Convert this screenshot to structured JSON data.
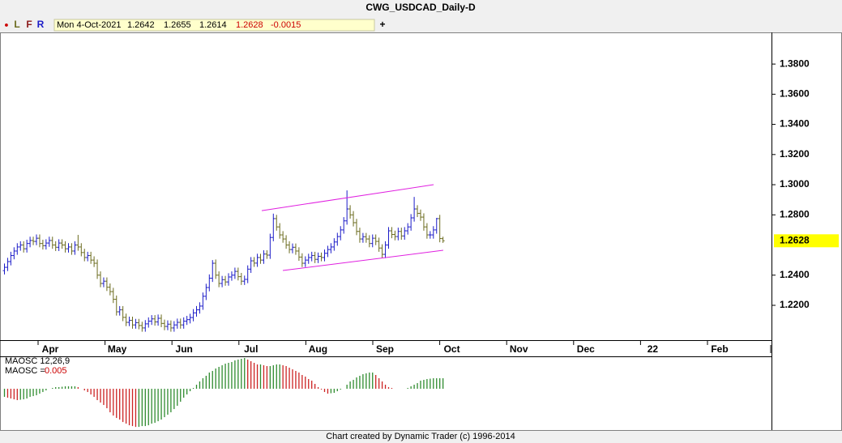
{
  "chart_data": {
    "type": "ohlc",
    "title": "CWG_USDCAD_Daily-D",
    "toolbar": [
      "L",
      "F",
      "R"
    ],
    "date": "Mon 4-Oct-2021",
    "change": -0.0015,
    "up_color": "#1c1cc8",
    "down_color": "#6b6b1e",
    "ylim": [
      1.1969,
      1.401
    ],
    "yticks": [
      {
        "value": 1.38,
        "label": "1.3800"
      },
      {
        "value": 1.36,
        "label": "1.3600"
      },
      {
        "value": 1.34,
        "label": "1.3400"
      },
      {
        "value": 1.32,
        "label": "1.3200"
      },
      {
        "value": 1.3,
        "label": "1.3000"
      },
      {
        "value": 1.28,
        "label": "1.2800"
      },
      {
        "value": 1.24,
        "label": "1.2400"
      },
      {
        "value": 1.22,
        "label": "1.2200"
      }
    ],
    "xlabels": [
      "Apr",
      "May",
      "Jun",
      "Jul",
      "Aug",
      "Sep",
      "Oct",
      "Nov",
      "Dec",
      "22",
      "Feb"
    ],
    "ohlc": [
      [
        1.243,
        1.2477,
        1.2405,
        1.2452
      ],
      [
        1.2452,
        1.2515,
        1.2427,
        1.249
      ],
      [
        1.249,
        1.2555,
        1.2465,
        1.253
      ],
      [
        1.253,
        1.2585,
        1.2505,
        1.256
      ],
      [
        1.256,
        1.2612,
        1.2535,
        1.2587
      ],
      [
        1.2587,
        1.2625,
        1.2562,
        1.26
      ],
      [
        1.26,
        1.2625,
        1.255,
        1.2575
      ],
      [
        1.2575,
        1.2635,
        1.255,
        1.261
      ],
      [
        1.261,
        1.2655,
        1.2585,
        1.263
      ],
      [
        1.263,
        1.2655,
        1.2599,
        1.2624
      ],
      [
        1.2624,
        1.267,
        1.2599,
        1.2645
      ],
      [
        1.2645,
        1.267,
        1.2585,
        1.261
      ],
      [
        1.261,
        1.2635,
        1.257,
        1.2595
      ],
      [
        1.2595,
        1.2638,
        1.257,
        1.2613
      ],
      [
        1.2613,
        1.2655,
        1.2588,
        1.263
      ],
      [
        1.263,
        1.2655,
        1.2575,
        1.26
      ],
      [
        1.26,
        1.2625,
        1.256,
        1.2585
      ],
      [
        1.2585,
        1.2638,
        1.256,
        1.2613
      ],
      [
        1.2613,
        1.2638,
        1.2575,
        1.26
      ],
      [
        1.26,
        1.2625,
        1.255,
        1.2575
      ],
      [
        1.2575,
        1.2612,
        1.255,
        1.2587
      ],
      [
        1.2587,
        1.2612,
        1.2535,
        1.256
      ],
      [
        1.256,
        1.2625,
        1.2535,
        1.26
      ],
      [
        1.26,
        1.2667,
        1.2562,
        1.2587
      ],
      [
        1.2587,
        1.2612,
        1.2525,
        1.255
      ],
      [
        1.255,
        1.2575,
        1.2492,
        1.2517
      ],
      [
        1.2517,
        1.2555,
        1.2492,
        1.253
      ],
      [
        1.253,
        1.2555,
        1.2475,
        1.25
      ],
      [
        1.25,
        1.2525,
        1.2454,
        1.2479
      ],
      [
        1.2479,
        1.2504,
        1.2375,
        1.24
      ],
      [
        1.24,
        1.2425,
        1.232,
        1.2345
      ],
      [
        1.2345,
        1.2385,
        1.232,
        1.236
      ],
      [
        1.236,
        1.2385,
        1.2295,
        1.232
      ],
      [
        1.232,
        1.2345,
        1.2266,
        1.2291
      ],
      [
        1.2291,
        1.2316,
        1.2215,
        1.224
      ],
      [
        1.224,
        1.2265,
        1.2132,
        1.2157
      ],
      [
        1.2157,
        1.2195,
        1.2132,
        1.217
      ],
      [
        1.217,
        1.2195,
        1.2095,
        1.212
      ],
      [
        1.212,
        1.2145,
        1.2062,
        1.2087
      ],
      [
        1.2087,
        1.2125,
        1.2062,
        1.21
      ],
      [
        1.21,
        1.2125,
        1.2045,
        1.207
      ],
      [
        1.207,
        1.211,
        1.2045,
        1.2085
      ],
      [
        1.2085,
        1.211,
        1.2041,
        1.2066
      ],
      [
        1.2066,
        1.2091,
        1.2025,
        1.205
      ],
      [
        1.205,
        1.2102,
        1.2025,
        1.2077
      ],
      [
        1.2077,
        1.212,
        1.2052,
        1.2095
      ],
      [
        1.2095,
        1.2135,
        1.207,
        1.211
      ],
      [
        1.211,
        1.2135,
        1.2065,
        1.209
      ],
      [
        1.209,
        1.2139,
        1.2065,
        1.2114
      ],
      [
        1.2114,
        1.2139,
        1.2055,
        1.208
      ],
      [
        1.208,
        1.2105,
        1.2035,
        1.206
      ],
      [
        1.206,
        1.21,
        1.2035,
        1.2075
      ],
      [
        1.2075,
        1.21,
        1.2025,
        1.205
      ],
      [
        1.205,
        1.2095,
        1.2025,
        1.207
      ],
      [
        1.207,
        1.2112,
        1.2045,
        1.2087
      ],
      [
        1.2087,
        1.2112,
        1.2045,
        1.207
      ],
      [
        1.207,
        1.212,
        1.2045,
        1.2095
      ],
      [
        1.2095,
        1.213,
        1.207,
        1.2105
      ],
      [
        1.2105,
        1.2144,
        1.208,
        1.2119
      ],
      [
        1.2119,
        1.2175,
        1.2094,
        1.215
      ],
      [
        1.215,
        1.2195,
        1.2125,
        1.217
      ],
      [
        1.217,
        1.222,
        1.2145,
        1.2195
      ],
      [
        1.2195,
        1.2285,
        1.217,
        1.226
      ],
      [
        1.226,
        1.2343,
        1.2235,
        1.2318
      ],
      [
        1.2318,
        1.2405,
        1.2293,
        1.238
      ],
      [
        1.238,
        1.25,
        1.2355,
        1.2479
      ],
      [
        1.2479,
        1.2504,
        1.2375,
        1.24
      ],
      [
        1.24,
        1.2425,
        1.232,
        1.2345
      ],
      [
        1.2345,
        1.2395,
        1.232,
        1.237
      ],
      [
        1.237,
        1.2395,
        1.233,
        1.2355
      ],
      [
        1.2355,
        1.2413,
        1.233,
        1.2388
      ],
      [
        1.2388,
        1.2425,
        1.2363,
        1.24
      ],
      [
        1.24,
        1.245,
        1.2375,
        1.2425
      ],
      [
        1.2425,
        1.245,
        1.2365,
        1.239
      ],
      [
        1.239,
        1.2415,
        1.2335,
        1.236
      ],
      [
        1.236,
        1.2397,
        1.2335,
        1.2372
      ],
      [
        1.2372,
        1.2465,
        1.2347,
        1.244
      ],
      [
        1.244,
        1.252,
        1.2415,
        1.2495
      ],
      [
        1.2495,
        1.252,
        1.2455,
        1.248
      ],
      [
        1.248,
        1.2542,
        1.2455,
        1.2517
      ],
      [
        1.2517,
        1.2542,
        1.2475,
        1.25
      ],
      [
        1.25,
        1.2565,
        1.2475,
        1.254
      ],
      [
        1.254,
        1.2565,
        1.2508,
        1.2533
      ],
      [
        1.2533,
        1.2675,
        1.2508,
        1.265
      ],
      [
        1.265,
        1.2808,
        1.2625,
        1.2775
      ],
      [
        1.2775,
        1.28,
        1.2695,
        1.272
      ],
      [
        1.272,
        1.2745,
        1.2642,
        1.2667
      ],
      [
        1.2667,
        1.2692,
        1.2615,
        1.264
      ],
      [
        1.264,
        1.2665,
        1.2575,
        1.26
      ],
      [
        1.26,
        1.2625,
        1.2545,
        1.257
      ],
      [
        1.257,
        1.261,
        1.2545,
        1.2585
      ],
      [
        1.2585,
        1.261,
        1.2535,
        1.256
      ],
      [
        1.256,
        1.2585,
        1.2495,
        1.252
      ],
      [
        1.252,
        1.2545,
        1.2454,
        1.2479
      ],
      [
        1.2479,
        1.2525,
        1.2454,
        1.25
      ],
      [
        1.25,
        1.2542,
        1.2475,
        1.2517
      ],
      [
        1.2517,
        1.2555,
        1.2492,
        1.253
      ],
      [
        1.253,
        1.2555,
        1.248,
        1.2505
      ],
      [
        1.2505,
        1.255,
        1.248,
        1.2525
      ],
      [
        1.2525,
        1.255,
        1.2492,
        1.2517
      ],
      [
        1.2517,
        1.257,
        1.2492,
        1.2545
      ],
      [
        1.2545,
        1.2595,
        1.252,
        1.257
      ],
      [
        1.257,
        1.2612,
        1.2545,
        1.2587
      ],
      [
        1.2587,
        1.2645,
        1.2562,
        1.262
      ],
      [
        1.262,
        1.2681,
        1.2595,
        1.2656
      ],
      [
        1.2656,
        1.2725,
        1.2631,
        1.27
      ],
      [
        1.27,
        1.2785,
        1.2675,
        1.276
      ],
      [
        1.276,
        1.2962,
        1.2735,
        1.2839
      ],
      [
        1.2839,
        1.2864,
        1.2775,
        1.28
      ],
      [
        1.28,
        1.2825,
        1.2723,
        1.2748
      ],
      [
        1.2748,
        1.2773,
        1.2665,
        1.269
      ],
      [
        1.269,
        1.2715,
        1.2615,
        1.264
      ],
      [
        1.264,
        1.268,
        1.2615,
        1.2655
      ],
      [
        1.2655,
        1.268,
        1.2615,
        1.264
      ],
      [
        1.264,
        1.2665,
        1.2585,
        1.261
      ],
      [
        1.261,
        1.267,
        1.2585,
        1.2645
      ],
      [
        1.2645,
        1.267,
        1.2599,
        1.2624
      ],
      [
        1.2624,
        1.2649,
        1.2555,
        1.258
      ],
      [
        1.258,
        1.2605,
        1.2513,
        1.2538
      ],
      [
        1.2538,
        1.2625,
        1.2513,
        1.26
      ],
      [
        1.26,
        1.2719,
        1.2575,
        1.2694
      ],
      [
        1.2694,
        1.2719,
        1.2645,
        1.267
      ],
      [
        1.267,
        1.2695,
        1.2631,
        1.2656
      ],
      [
        1.2656,
        1.2715,
        1.2631,
        1.269
      ],
      [
        1.269,
        1.2715,
        1.2635,
        1.266
      ],
      [
        1.266,
        1.2719,
        1.2635,
        1.2694
      ],
      [
        1.2694,
        1.2745,
        1.2669,
        1.272
      ],
      [
        1.272,
        1.2805,
        1.2695,
        1.278
      ],
      [
        1.278,
        1.2919,
        1.2755,
        1.2839
      ],
      [
        1.2839,
        1.2864,
        1.2785,
        1.281
      ],
      [
        1.281,
        1.2835,
        1.276,
        1.2785
      ],
      [
        1.2785,
        1.281,
        1.2695,
        1.272
      ],
      [
        1.272,
        1.2745,
        1.2642,
        1.2667
      ],
      [
        1.2667,
        1.2692,
        1.2642,
        1.2667
      ],
      [
        1.2667,
        1.2725,
        1.2642,
        1.27
      ],
      [
        1.27,
        1.278,
        1.2675,
        1.2775
      ],
      [
        1.2775,
        1.28,
        1.2618,
        1.2643
      ],
      [
        1.2642,
        1.2655,
        1.2614,
        1.2628
      ]
    ],
    "trendlines": [
      {
        "x": [
          80.5,
          134.2
        ],
        "y": [
          1.2828,
          1.3
        ],
        "color": "#e020e0"
      },
      {
        "x": [
          87.1,
          137.2
        ],
        "y": [
          1.2431,
          1.2565
        ],
        "color": "#e020e0"
      }
    ],
    "maosc": {
      "name": "MAOSC 12,26,9",
      "value_prefix": "MAOSC =",
      "up_color": "#2e8b2e",
      "down_color": "#cc2222",
      "ylim": [
        -0.0196,
        0.0154
      ],
      "values": [
        -0.00385,
        -0.00424,
        -0.00462,
        -0.00501,
        -0.00539,
        -0.0052,
        -0.00501,
        -0.00462,
        -0.00385,
        -0.00347,
        -0.00308,
        -0.00231,
        -0.00154,
        -0.00077,
        0,
        0.00039,
        0.00077,
        0.00077,
        0.00096,
        0.00116,
        0.00116,
        0.00116,
        0.00116,
        0.00077,
        0,
        -0.00077,
        -0.00154,
        -0.0027,
        -0.00385,
        -0.00539,
        -0.00655,
        -0.0077,
        -0.00924,
        -0.01117,
        -0.01271,
        -0.01386,
        -0.01463,
        -0.01579,
        -0.01656,
        -0.01733,
        -0.01771,
        -0.0181,
        -0.0181,
        -0.01771,
        -0.01771,
        -0.01733,
        -0.01656,
        -0.01617,
        -0.0154,
        -0.01463,
        -0.01348,
        -0.01232,
        -0.01117,
        -0.00963,
        -0.00809,
        -0.00616,
        -0.00424,
        -0.0027,
        -0.00116,
        0.00039,
        0.00193,
        0.00347,
        0.005,
        0.00616,
        0.0077,
        0.00847,
        0.00963,
        0.0104,
        0.01117,
        0.01194,
        0.01232,
        0.01271,
        0.01348,
        0.01386,
        0.01425,
        0.01463,
        0.01386,
        0.01309,
        0.01232,
        0.01155,
        0.01155,
        0.01117,
        0.01078,
        0.01078,
        0.01117,
        0.01155,
        0.01155,
        0.01117,
        0.01078,
        0.01001,
        0.00924,
        0.00847,
        0.0077,
        0.00655,
        0.00578,
        0.00462,
        0.00385,
        0.00231,
        0.00077,
        -0.00039,
        -0.00154,
        -0.00231,
        -0.00212,
        -0.00193,
        -0.00116,
        -0.00039,
        0,
        0.00193,
        0.00347,
        0.00424,
        0.00539,
        0.00616,
        0.00693,
        0.00732,
        0.0077,
        0.0077,
        0.00655,
        0.005,
        0.00347,
        0.00193,
        0.00077,
        0.00039,
        0,
        0,
        0,
        0,
        0.00039,
        0.00116,
        0.00193,
        0.0027,
        0.00385,
        0.00424,
        0.00462,
        0.00481,
        0.005,
        0.005,
        0.005,
        0.005
      ]
    },
    "footer": "Chart created by Dynamic Trader  (c) 1996-2014"
  }
}
